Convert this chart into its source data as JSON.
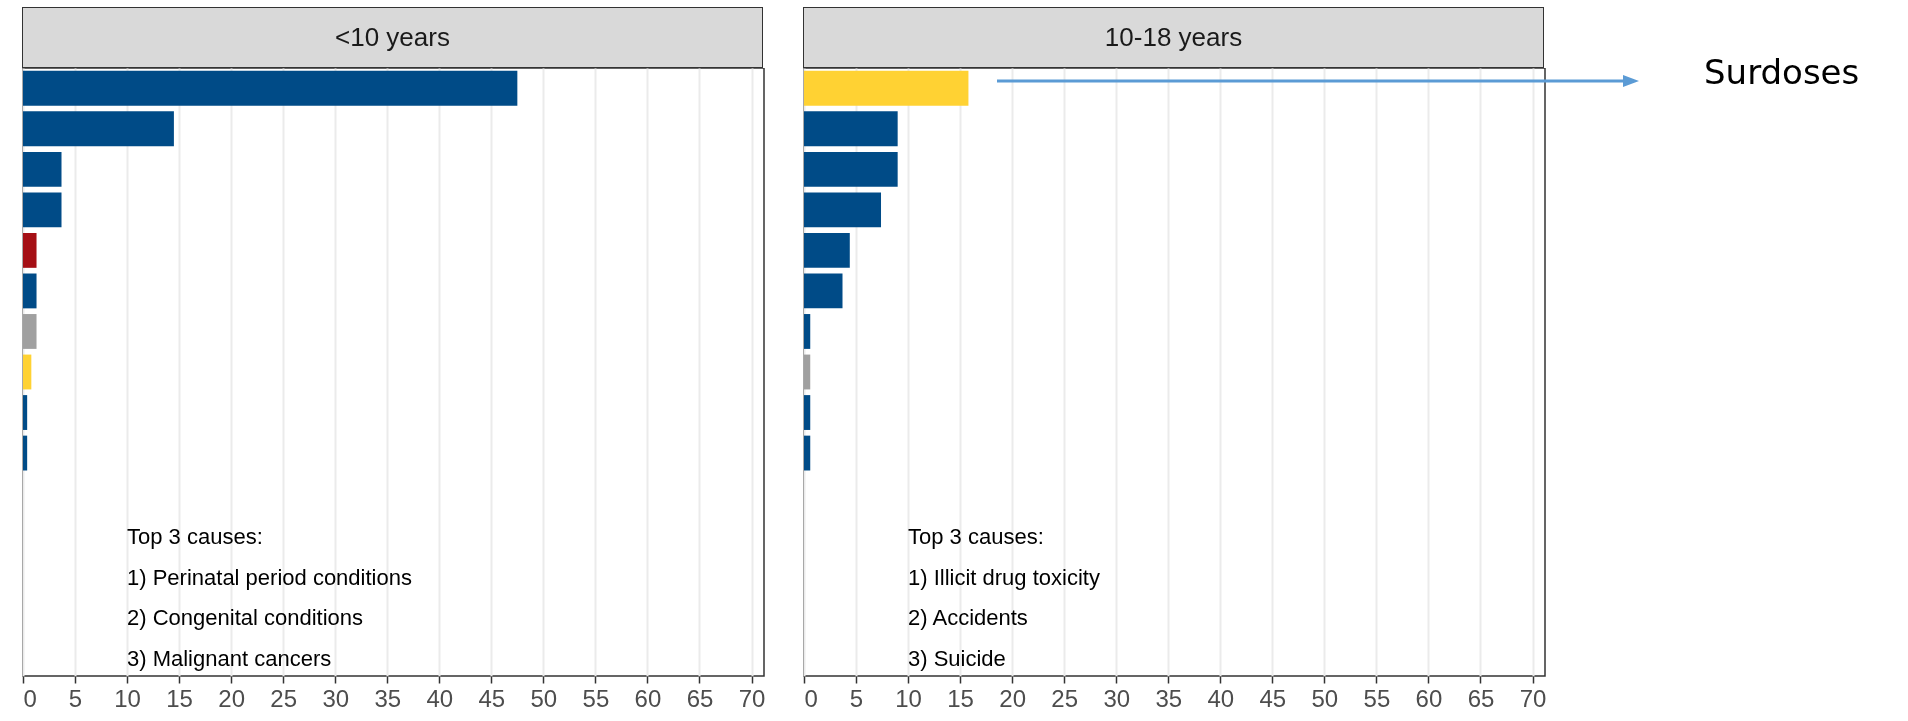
{
  "chart_data": [
    {
      "type": "bar",
      "orientation": "horizontal",
      "title": "<10 years",
      "categories": [
        null,
        null,
        null,
        null,
        null,
        null,
        null,
        null,
        null,
        null,
        null,
        null,
        null,
        null,
        null
      ],
      "values": [
        47.5,
        14.5,
        3.7,
        3.7,
        1.3,
        1.3,
        1.3,
        0.8,
        0.4,
        0.4,
        null,
        null,
        null,
        null,
        null
      ],
      "colors": [
        "#004b87",
        "#004b87",
        "#004b87",
        "#004b87",
        "#a50f15",
        "#004b87",
        "#a0a0a0",
        "#ffd233",
        "#004b87",
        "#004b87",
        null,
        null,
        null,
        null,
        null
      ],
      "xlim": [
        0,
        71.2
      ],
      "xticks": [
        0,
        5,
        10,
        15,
        20,
        25,
        30,
        35,
        40,
        45,
        50,
        55,
        60,
        65,
        70
      ],
      "grid": "x",
      "tick_labels": "x",
      "annotations": [
        "Top 3 causes:",
        "1) Perinatal period conditions",
        "2) Congenital conditions",
        "3) Malignant cancers"
      ]
    },
    {
      "type": "bar",
      "orientation": "horizontal",
      "title": "10-18 years",
      "categories": [
        null,
        null,
        null,
        null,
        null,
        null,
        null,
        null,
        null,
        null,
        null,
        null,
        null,
        null,
        null
      ],
      "values": [
        15.8,
        9.0,
        9.0,
        7.4,
        4.4,
        3.7,
        0.6,
        0.6,
        0.6,
        0.6,
        null,
        null,
        null,
        null,
        null
      ],
      "colors": [
        "#ffd233",
        "#004b87",
        "#004b87",
        "#004b87",
        "#004b87",
        "#004b87",
        "#004b87",
        "#a0a0a0",
        "#004b87",
        "#004b87",
        null,
        null,
        null,
        null,
        null
      ],
      "xlim": [
        0,
        71.2
      ],
      "xticks": [
        0,
        5,
        10,
        15,
        20,
        25,
        30,
        35,
        40,
        45,
        50,
        55,
        60,
        65,
        70
      ],
      "grid": "x",
      "tick_labels": "x",
      "annotations": [
        "Top 3 causes:",
        "1) Illicit drug toxicity",
        "2) Accidents",
        "3) Suicide",
        "Surdoses"
      ]
    }
  ]
}
